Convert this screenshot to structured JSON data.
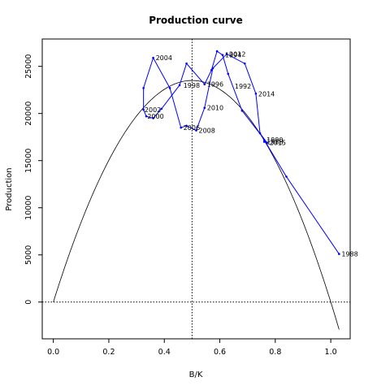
{
  "chart_data": {
    "type": "line",
    "title": "Production curve",
    "xlabel": "B/K",
    "ylabel": "Production",
    "xlim": [
      -0.04,
      1.07
    ],
    "ylim": [
      -3900,
      27900
    ],
    "xticks": [
      "0.0",
      "0.2",
      "0.4",
      "0.6",
      "0.8",
      "1.0"
    ],
    "yticks": [
      "0",
      "5000",
      "10000",
      "15000",
      "20000",
      "25000"
    ],
    "reference_lines": {
      "vertical_x": 0.5,
      "horizontal_y": 0
    },
    "curve": {
      "color": "#000000",
      "x_start": 0.0,
      "x_end": 1.03,
      "peak_x": 0.5,
      "peak_y": 23500
    },
    "series": [
      {
        "color": "#0000ff",
        "points": [
          {
            "x": 1.03,
            "y": 5100,
            "label": "1988"
          },
          {
            "x": 0.84,
            "y": 13300,
            "label": ""
          },
          {
            "x": 0.76,
            "y": 17200,
            "label": "1990"
          },
          {
            "x": 0.76,
            "y": 17000,
            "label": "1988"
          },
          {
            "x": 0.77,
            "y": 16900,
            "label": "2015"
          },
          {
            "x": 0.645,
            "y": 22900,
            "label": "1992"
          },
          {
            "x": 0.61,
            "y": 26200,
            "label": "1994"
          },
          {
            "x": 0.545,
            "y": 23100,
            "label": "1996"
          },
          {
            "x": 0.46,
            "y": 23000,
            "label": "1998"
          },
          {
            "x": 0.33,
            "y": 19700,
            "label": "2000"
          },
          {
            "x": 0.32,
            "y": 20400,
            "label": "2002"
          },
          {
            "x": 0.36,
            "y": 25900,
            "label": "2004"
          },
          {
            "x": 0.42,
            "y": 22700,
            "label": ""
          },
          {
            "x": 0.46,
            "y": 18500,
            "label": "2006"
          },
          {
            "x": 0.515,
            "y": 18200,
            "label": "2008"
          },
          {
            "x": 0.545,
            "y": 20600,
            "label": "2010"
          },
          {
            "x": 0.625,
            "y": 26300,
            "label": "2012"
          },
          {
            "x": 0.73,
            "y": 22100,
            "label": "2014"
          }
        ],
        "path_order": [
          [
            1.03,
            5100
          ],
          [
            0.84,
            13300
          ],
          [
            0.76,
            17200
          ],
          [
            0.76,
            17000
          ],
          [
            0.77,
            16900
          ],
          [
            0.68,
            20300
          ],
          [
            0.63,
            24200
          ],
          [
            0.61,
            26200
          ],
          [
            0.59,
            26600
          ],
          [
            0.57,
            24600
          ],
          [
            0.545,
            23100
          ],
          [
            0.48,
            25300
          ],
          [
            0.455,
            23000
          ],
          [
            0.39,
            20500
          ],
          [
            0.36,
            19500
          ],
          [
            0.335,
            19700
          ],
          [
            0.325,
            20400
          ],
          [
            0.325,
            22700
          ],
          [
            0.36,
            25900
          ],
          [
            0.42,
            22700
          ],
          [
            0.46,
            18500
          ],
          [
            0.48,
            18700
          ],
          [
            0.515,
            18200
          ],
          [
            0.545,
            20600
          ],
          [
            0.575,
            24800
          ],
          [
            0.625,
            26300
          ],
          [
            0.69,
            25300
          ],
          [
            0.73,
            22100
          ],
          [
            0.745,
            17900
          ],
          [
            0.77,
            16900
          ]
        ]
      }
    ]
  }
}
